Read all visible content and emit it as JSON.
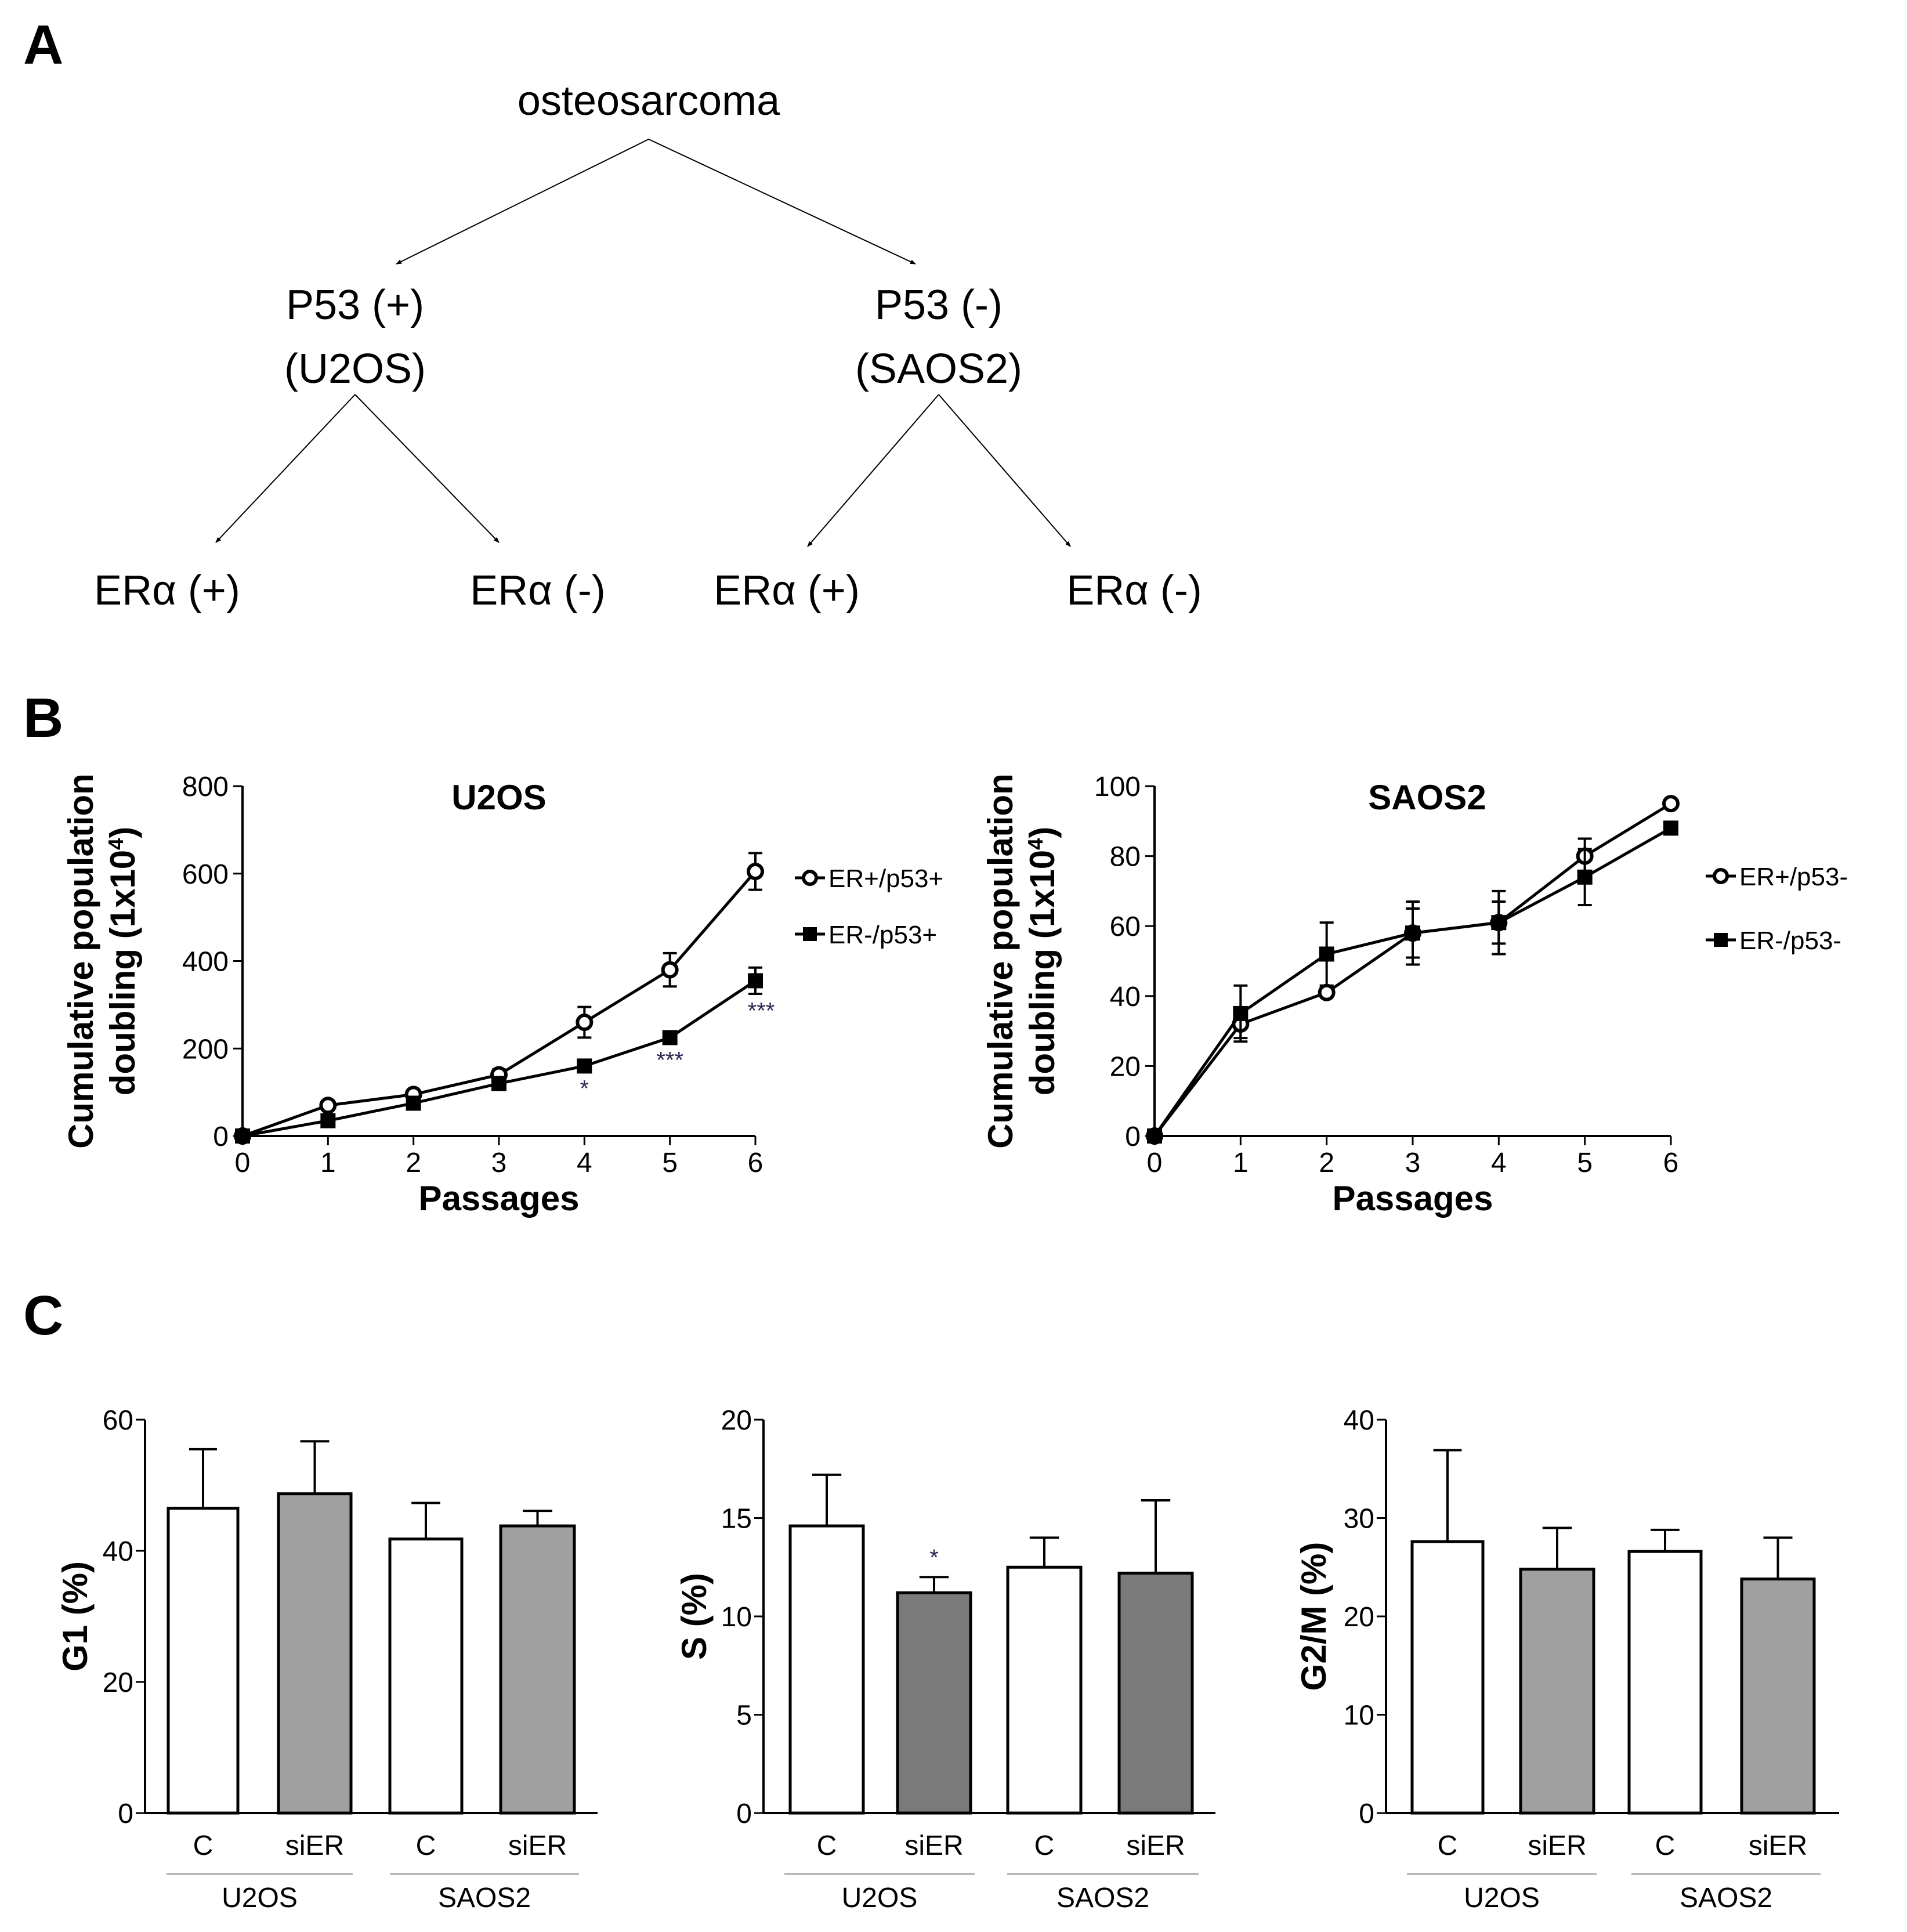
{
  "panels": {
    "a": "A",
    "b": "B",
    "c": "C"
  },
  "tree": {
    "root": "osteosarcoma",
    "left": {
      "line1": "P53 (+)",
      "line2": "(U2OS)"
    },
    "right": {
      "line1": "P53 (-)",
      "line2": "(SAOS2)"
    },
    "leaves": [
      "ERα (+)",
      "ERα (-)",
      "ERα (+)",
      "ERα (-)"
    ]
  },
  "chart_data": [
    {
      "type": "line",
      "title": "U2OS",
      "xlabel": "Passages",
      "ylabel": "Cumulative population doubling (1x10⁴)",
      "ylabel_line1": "Cumulative population",
      "ylabel_line2": "doubling (1x10",
      "ylabel_sup": "4",
      "ylabel_close": ")",
      "x": [
        0,
        1,
        2,
        3,
        4,
        5,
        6
      ],
      "xlim": [
        0,
        6
      ],
      "ylim": [
        0,
        800
      ],
      "yticks": [
        0,
        200,
        400,
        600,
        800
      ],
      "series": [
        {
          "name": "ER+/p53+",
          "marker": "open-circle",
          "values": [
            0,
            70,
            95,
            140,
            260,
            380,
            605
          ],
          "errors": [
            0,
            8,
            10,
            12,
            35,
            38,
            42
          ]
        },
        {
          "name": "ER-/p53+",
          "marker": "filled-square",
          "values": [
            0,
            35,
            75,
            120,
            160,
            225,
            355
          ],
          "errors": [
            0,
            5,
            6,
            8,
            10,
            10,
            30
          ]
        }
      ],
      "annotations": [
        {
          "x": 4,
          "text": "*"
        },
        {
          "x": 5,
          "text": "***"
        },
        {
          "x": 6,
          "text": "***"
        }
      ]
    },
    {
      "type": "line",
      "title": "SAOS2",
      "xlabel": "Passages",
      "ylabel": "Cumulative population doubling (1x10⁴)",
      "ylabel_line1": "Cumulative population",
      "ylabel_line2": "doubling (1x10",
      "ylabel_sup": "4",
      "ylabel_close": ")",
      "x": [
        0,
        1,
        2,
        3,
        4,
        5,
        6
      ],
      "xlim": [
        0,
        6
      ],
      "ylim": [
        0,
        100
      ],
      "yticks": [
        0,
        20,
        40,
        60,
        80,
        100
      ],
      "series": [
        {
          "name": "ER+/p53-",
          "marker": "open-circle",
          "values": [
            0,
            32,
            41,
            58,
            61,
            80,
            95
          ],
          "errors": [
            0,
            4,
            1,
            7,
            6,
            5,
            0
          ]
        },
        {
          "name": "ER-/p53-",
          "marker": "filled-square",
          "values": [
            0,
            35,
            52,
            58,
            61,
            74,
            88
          ],
          "errors": [
            0,
            8,
            9,
            9,
            9,
            8,
            0
          ]
        }
      ]
    },
    {
      "type": "bar",
      "ylabel": "G1 (%)",
      "categories": [
        "C",
        "siER",
        "C",
        "siER"
      ],
      "groups": [
        "U2OS",
        "SAOS2"
      ],
      "values": [
        46.5,
        48.7,
        41.8,
        43.8
      ],
      "errors": [
        9.0,
        8.0,
        5.5,
        2.3
      ],
      "fills": [
        "#ffffff",
        "#a0a0a0",
        "#ffffff",
        "#a0a0a0"
      ],
      "ylim": [
        0,
        60
      ],
      "yticks": [
        0,
        20,
        40,
        60
      ]
    },
    {
      "type": "bar",
      "ylabel": "S (%)",
      "categories": [
        "C",
        "siER",
        "C",
        "siER"
      ],
      "groups": [
        "U2OS",
        "SAOS2"
      ],
      "values": [
        14.6,
        11.2,
        12.5,
        12.2
      ],
      "errors": [
        2.6,
        0.8,
        1.5,
        3.7
      ],
      "fills": [
        "#ffffff",
        "#7a7a7a",
        "#ffffff",
        "#7a7a7a"
      ],
      "ylim": [
        0,
        20
      ],
      "yticks": [
        0,
        5,
        10,
        15,
        20
      ],
      "annotations": [
        {
          "index": 1,
          "text": "*"
        }
      ]
    },
    {
      "type": "bar",
      "ylabel": "G2/M (%)",
      "categories": [
        "C",
        "siER",
        "C",
        "siER"
      ],
      "groups": [
        "U2OS",
        "SAOS2"
      ],
      "values": [
        27.6,
        24.8,
        26.6,
        23.8
      ],
      "errors": [
        9.3,
        4.2,
        2.2,
        4.2
      ],
      "fills": [
        "#ffffff",
        "#a0a0a0",
        "#ffffff",
        "#a0a0a0"
      ],
      "ylim": [
        0,
        40
      ],
      "yticks": [
        0,
        10,
        20,
        30,
        40
      ]
    }
  ]
}
